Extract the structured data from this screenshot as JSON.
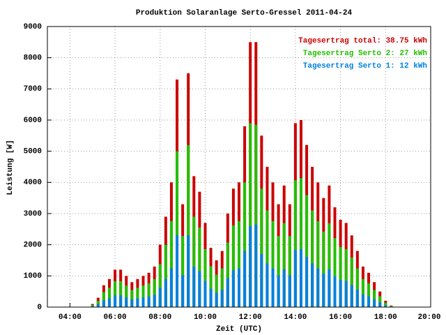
{
  "chart_data": {
    "type": "bar",
    "title": "Produktion Solaranlage Serto-Gressel 2011-04-24",
    "xlabel": "Zeit (UTC)",
    "ylabel": "Leistung [W]",
    "x": [
      5,
      5.25,
      5.5,
      5.75,
      6,
      6.25,
      6.5,
      6.75,
      7,
      7.25,
      7.5,
      7.75,
      8,
      8.25,
      8.5,
      8.75,
      9,
      9.25,
      9.5,
      9.75,
      10,
      10.25,
      10.5,
      10.75,
      11,
      11.25,
      11.5,
      11.75,
      12,
      12.25,
      12.5,
      12.75,
      13,
      13.25,
      13.5,
      13.75,
      14,
      14.25,
      14.5,
      14.75,
      15,
      15.25,
      15.5,
      15.75,
      16,
      16.25,
      16.5,
      16.75,
      17,
      17.25,
      17.5,
      17.75,
      18,
      18.25
    ],
    "series": [
      {
        "name": "Tagesertrag total: 38.75 kWh",
        "color": "#cc0000",
        "values": [
          100,
          300,
          700,
          900,
          1200,
          1200,
          1000,
          800,
          900,
          1000,
          1100,
          1300,
          2000,
          2900,
          4000,
          7300,
          3300,
          7500,
          4200,
          3700,
          2700,
          1900,
          1500,
          1800,
          3000,
          3800,
          4000,
          5800,
          8500,
          8500,
          5500,
          4500,
          4000,
          3300,
          3900,
          3300,
          5900,
          6000,
          5200,
          4500,
          4000,
          3500,
          3900,
          3200,
          2800,
          2700,
          2300,
          1800,
          1300,
          1100,
          800,
          500,
          200,
          50
        ]
      },
      {
        "name": "Tagesertrag Serto 2: 27 kWh",
        "color": "#22c000",
        "values": [
          70,
          200,
          480,
          620,
          830,
          830,
          690,
          550,
          620,
          690,
          760,
          900,
          1380,
          2000,
          2760,
          5000,
          2280,
          5200,
          2900,
          2550,
          1860,
          1310,
          1040,
          1240,
          2070,
          2620,
          2760,
          4000,
          5900,
          5850,
          3800,
          3100,
          2760,
          2280,
          2690,
          2280,
          4070,
          4140,
          3590,
          3100,
          2760,
          2420,
          2690,
          2210,
          1930,
          1860,
          1590,
          1240,
          900,
          760,
          550,
          350,
          140,
          35
        ]
      },
      {
        "name": "Tagesertrag Serto 1: 12 kWh",
        "color": "#0080e0",
        "values": [
          30,
          100,
          220,
          280,
          370,
          370,
          310,
          250,
          280,
          310,
          340,
          400,
          620,
          900,
          1240,
          2300,
          1020,
          2300,
          1300,
          1150,
          840,
          590,
          460,
          560,
          930,
          1180,
          1240,
          1800,
          2600,
          2650,
          1700,
          1400,
          1240,
          1020,
          1210,
          1020,
          1830,
          1860,
          1610,
          1400,
          1240,
          1080,
          1210,
          990,
          870,
          840,
          710,
          560,
          400,
          340,
          250,
          150,
          60,
          15
        ]
      }
    ],
    "xlim": [
      3,
      20
    ],
    "xticks": [
      {
        "value": 4,
        "label": "04:00"
      },
      {
        "value": 6,
        "label": "06:00"
      },
      {
        "value": 8,
        "label": "08:00"
      },
      {
        "value": 10,
        "label": "10:00"
      },
      {
        "value": 12,
        "label": "12:00"
      },
      {
        "value": 14,
        "label": "14:00"
      },
      {
        "value": 16,
        "label": "16:00"
      },
      {
        "value": 18,
        "label": "18:00"
      },
      {
        "value": 20,
        "label": "20:00"
      }
    ],
    "ylim": [
      0,
      9000
    ],
    "yticks": [
      0,
      1000,
      2000,
      3000,
      4000,
      5000,
      6000,
      7000,
      8000,
      9000
    ],
    "grid": true,
    "legend": "top-right"
  }
}
